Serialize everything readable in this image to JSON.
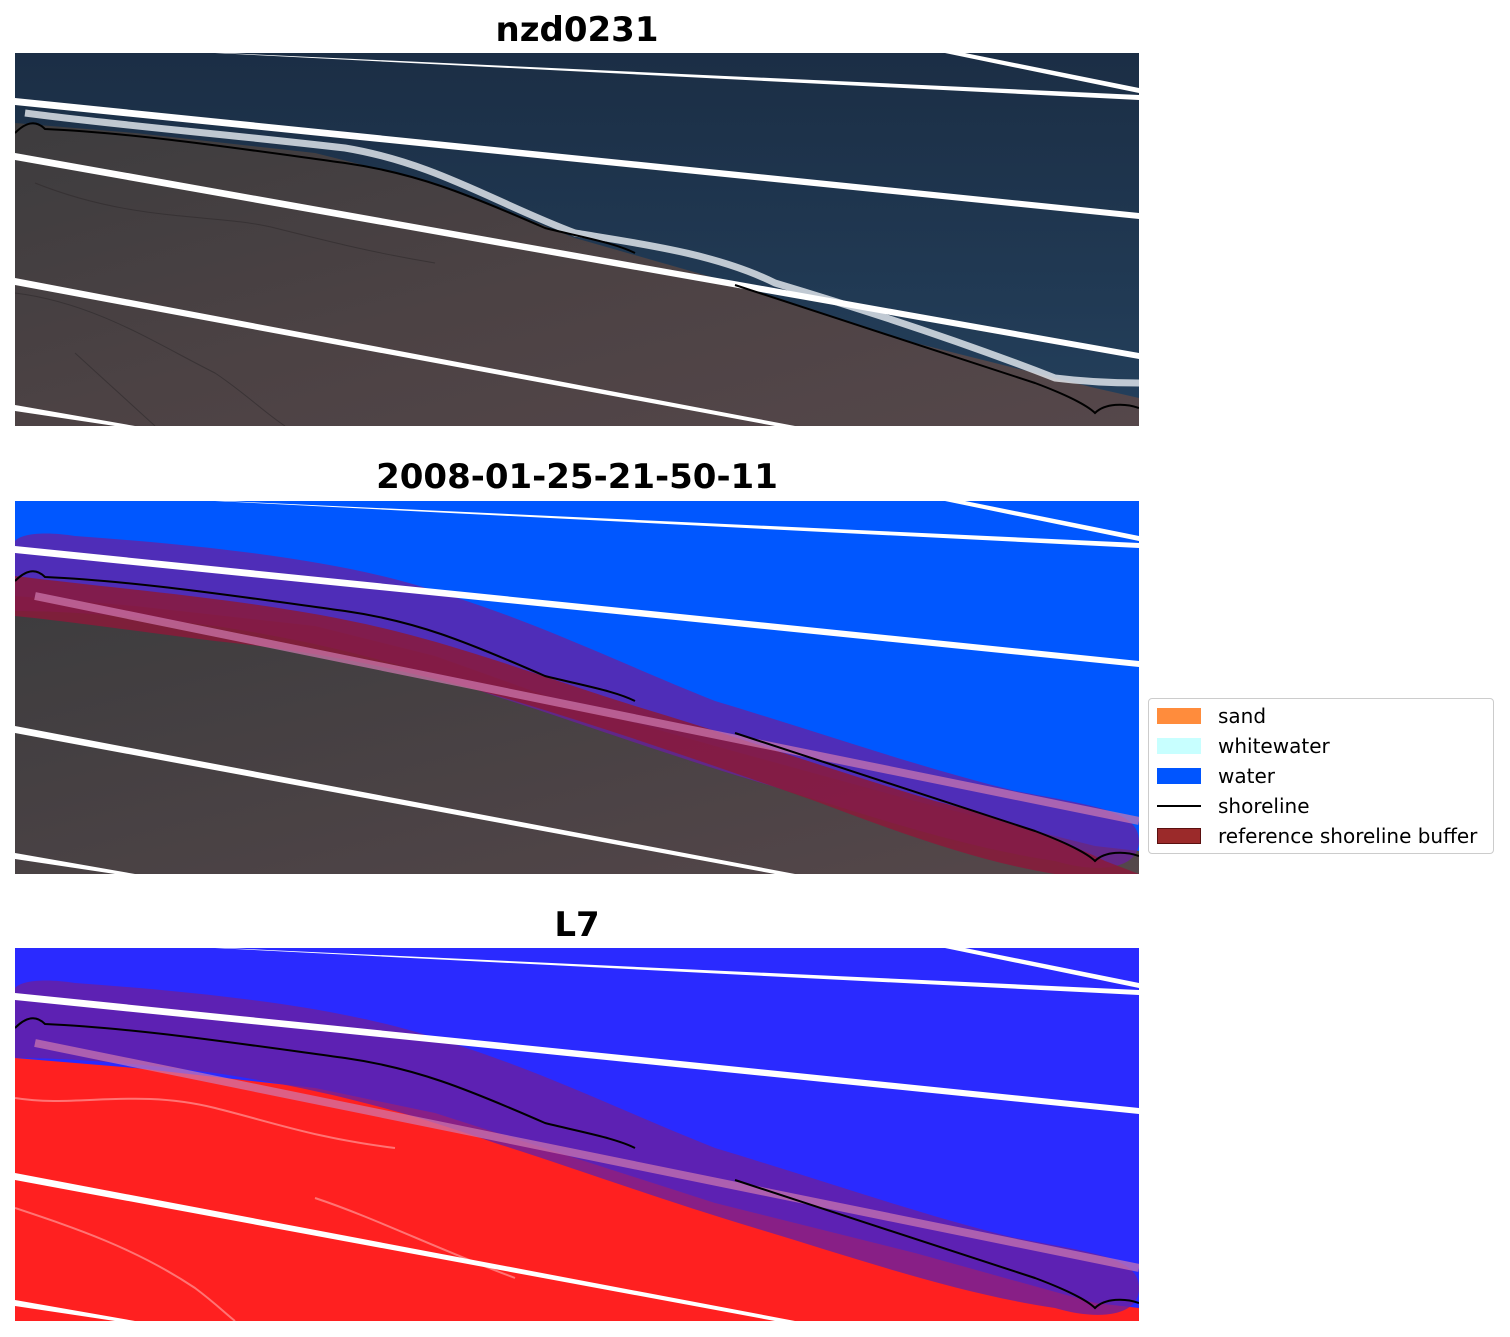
{
  "panels": [
    {
      "title": "nzd0231",
      "kind": "rgb"
    },
    {
      "title": "2008-01-25-21-50-11",
      "kind": "classified"
    },
    {
      "title": "L7",
      "kind": "index"
    }
  ],
  "legend": {
    "items": [
      {
        "label": "sand",
        "color": "#ff8c3c",
        "type": "patch"
      },
      {
        "label": "whitewater",
        "color": "#c8ffff",
        "type": "patch"
      },
      {
        "label": "water",
        "color": "#0055ff",
        "type": "patch"
      },
      {
        "label": "shoreline",
        "color": "#000000",
        "type": "line"
      },
      {
        "label": "reference shoreline buffer",
        "color": "#9b2a2a",
        "type": "patch"
      }
    ]
  },
  "colors": {
    "ocean_rgb": "#1e3550",
    "land_rgb": "#4a4240",
    "water_class": "#0057ff",
    "buffer": "#8a1a3a",
    "index_water": "#2a2aff",
    "index_land": "#ff2020",
    "stripe": "#ffffff"
  }
}
